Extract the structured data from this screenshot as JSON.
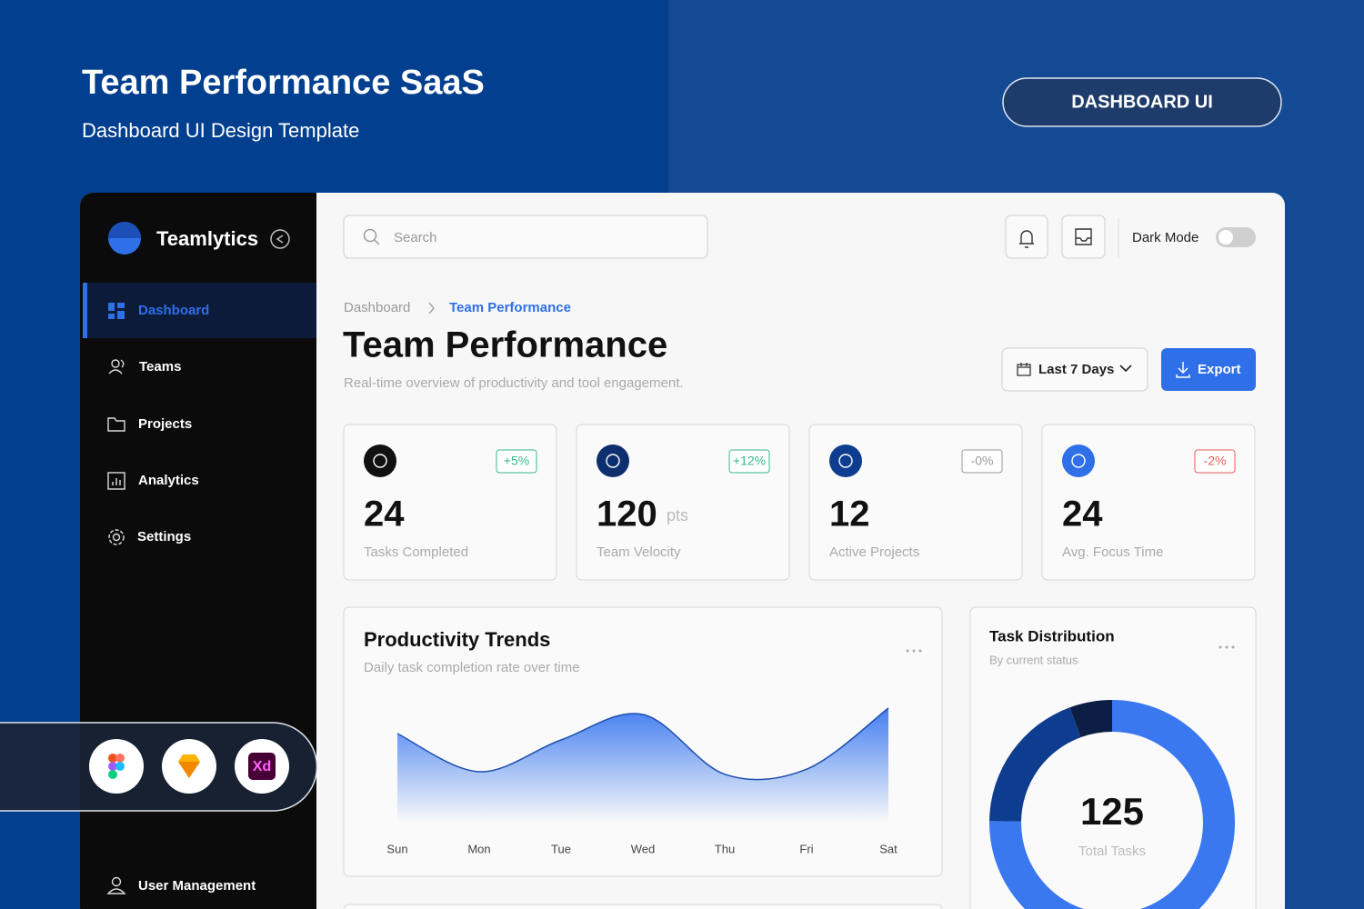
{
  "header": {
    "title": "Team Performance SaaS",
    "subtitle": "Dashboard UI Design Template",
    "badge": "DASHBOARD UI"
  },
  "sidebar": {
    "brand": "Teamlytics",
    "nav": [
      "Dashboard",
      "Teams",
      "Projects",
      "Analytics",
      "Settings"
    ],
    "footer": "User Management"
  },
  "topbar": {
    "search": "Search",
    "dark_mode": "Dark Mode"
  },
  "breadcrumb": [
    "Dashboard",
    "Team Performance"
  ],
  "page": {
    "title": "Team Performance",
    "subtitle": "Real-time overview of productivity and tool engagement.",
    "range": "Last 7 Days",
    "export": "Export"
  },
  "kpis": [
    {
      "value": "24",
      "badge": "+5%",
      "label": "Tasks Completed"
    },
    {
      "value": "120",
      "unit": "pts",
      "badge": "+12%",
      "label": "Team Velocity"
    },
    {
      "value": "12",
      "badge": "-0%",
      "label": "Active Projects"
    },
    {
      "value": "24",
      "badge": "-2%",
      "label": "Avg. Focus Time"
    }
  ],
  "tools": {
    "xd": "Xd"
  },
  "chart_data": [
    {
      "type": "area",
      "title": "Productivity Trends",
      "subtitle": "Daily task completion rate over time",
      "categories": [
        "Sun",
        "Mon",
        "Tue",
        "Wed",
        "Thu",
        "Fri",
        "Sat"
      ],
      "values": [
        70,
        40,
        65,
        85,
        38,
        42,
        90
      ],
      "color": "#3a78f0",
      "ylim": [
        0,
        100
      ]
    },
    {
      "type": "donut",
      "title": "Task Distribution",
      "subtitle": "By current status",
      "values": [
        94,
        24,
        7
      ],
      "colors": [
        "#3a78f0",
        "#0e3d8f",
        "#0d1e45"
      ],
      "total": "125",
      "total_label": "Total Tasks"
    }
  ]
}
